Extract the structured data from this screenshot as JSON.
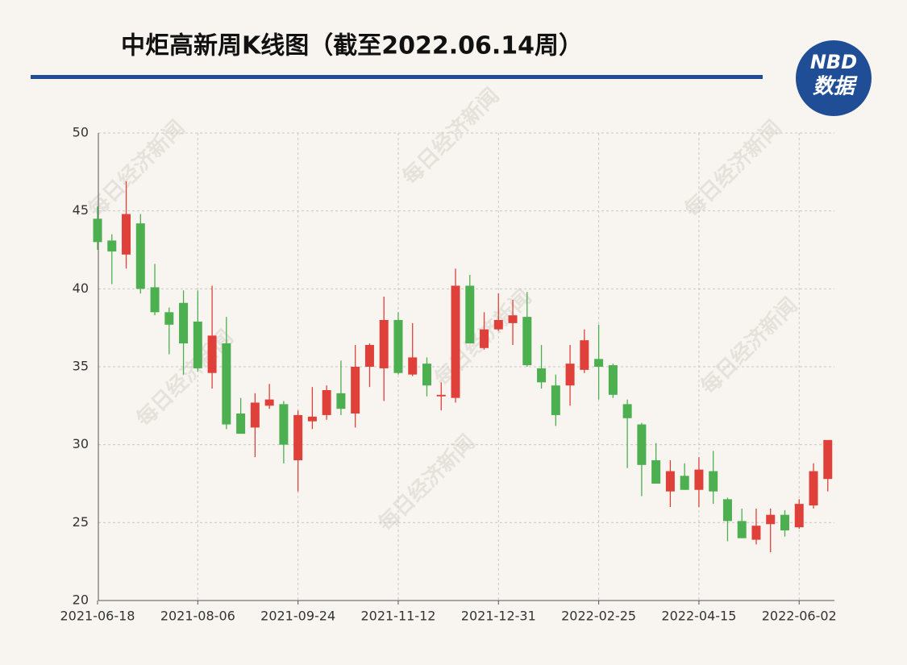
{
  "chart_data": {
    "type": "candlestick",
    "title": "中炬高新周K线图（截至2022.06.14周）",
    "logo": {
      "top": "NBD",
      "bottom": "数据"
    },
    "watermark": "每日经济新闻",
    "up_color": "#e0403a",
    "down_color": "#4caf50",
    "grid": true,
    "ylim": [
      20,
      50
    ],
    "yticks": [
      20,
      25,
      30,
      35,
      40,
      45,
      50
    ],
    "categories": [
      "2021-06-18",
      null,
      null,
      null,
      null,
      null,
      null,
      "2021-08-06",
      null,
      null,
      null,
      null,
      null,
      null,
      "2021-09-24",
      null,
      null,
      null,
      null,
      null,
      null,
      "2021-11-12",
      null,
      null,
      null,
      null,
      null,
      null,
      "2021-12-31",
      null,
      null,
      null,
      null,
      null,
      null,
      "2022-02-25",
      null,
      null,
      null,
      null,
      null,
      null,
      "2022-04-15",
      null,
      null,
      null,
      null,
      null,
      null,
      "2022-06-02",
      null,
      null
    ],
    "open": [
      44.5,
      43.1,
      42.2,
      44.2,
      40.1,
      38.5,
      39.1,
      37.9,
      34.6,
      36.5,
      32.0,
      31.1,
      32.5,
      32.6,
      29.0,
      31.5,
      31.9,
      33.3,
      32.0,
      35.0,
      34.9,
      38.0,
      34.5,
      35.2,
      33.1,
      33.0,
      40.2,
      36.2,
      37.4,
      37.8,
      38.2,
      34.9,
      33.8,
      33.8,
      34.8,
      35.5,
      35.1,
      32.6,
      31.3,
      29.0,
      27.0,
      28.0,
      27.1,
      28.3,
      26.5,
      25.1,
      23.9,
      24.9,
      25.5,
      24.7,
      26.1,
      27.8
    ],
    "high": [
      45.3,
      43.5,
      46.9,
      44.8,
      41.6,
      38.8,
      39.9,
      39.9,
      40.2,
      38.2,
      33.0,
      33.3,
      33.9,
      32.8,
      32.2,
      33.7,
      33.8,
      35.4,
      36.4,
      36.5,
      39.5,
      38.5,
      37.8,
      35.6,
      34.0,
      41.3,
      40.9,
      38.5,
      39.7,
      39.3,
      39.8,
      36.4,
      34.5,
      36.4,
      37.4,
      37.7,
      35.2,
      32.9,
      31.4,
      30.1,
      29.0,
      28.8,
      29.2,
      29.6,
      26.6,
      25.9,
      25.9,
      25.9,
      25.8,
      26.5,
      28.8,
      30.3
    ],
    "low": [
      42.5,
      40.3,
      41.3,
      39.7,
      38.3,
      35.8,
      34.5,
      34.7,
      33.6,
      31.0,
      30.7,
      29.2,
      32.3,
      28.8,
      27.0,
      31.0,
      31.6,
      31.9,
      31.1,
      33.7,
      32.8,
      34.5,
      34.4,
      33.1,
      32.2,
      32.7,
      36.5,
      36.1,
      37.3,
      36.4,
      35.0,
      33.6,
      31.2,
      32.5,
      34.6,
      32.9,
      33.0,
      28.5,
      26.7,
      27.5,
      26.0,
      27.1,
      26.0,
      26.2,
      23.8,
      24.0,
      23.6,
      23.1,
      24.1,
      24.6,
      25.9,
      27.0
    ],
    "close": [
      43.0,
      42.4,
      44.8,
      40.0,
      38.5,
      37.7,
      36.5,
      34.9,
      37.0,
      31.3,
      30.7,
      32.7,
      32.9,
      30.0,
      31.9,
      31.8,
      33.5,
      32.3,
      35.0,
      36.4,
      38.0,
      34.6,
      35.6,
      33.8,
      33.2,
      40.2,
      36.5,
      37.4,
      38.0,
      38.3,
      35.1,
      34.0,
      31.9,
      35.2,
      36.7,
      35.0,
      33.2,
      31.7,
      28.7,
      27.5,
      28.3,
      27.1,
      28.4,
      27.0,
      25.1,
      24.0,
      24.8,
      25.5,
      24.5,
      26.2,
      28.3,
      30.3
    ]
  }
}
